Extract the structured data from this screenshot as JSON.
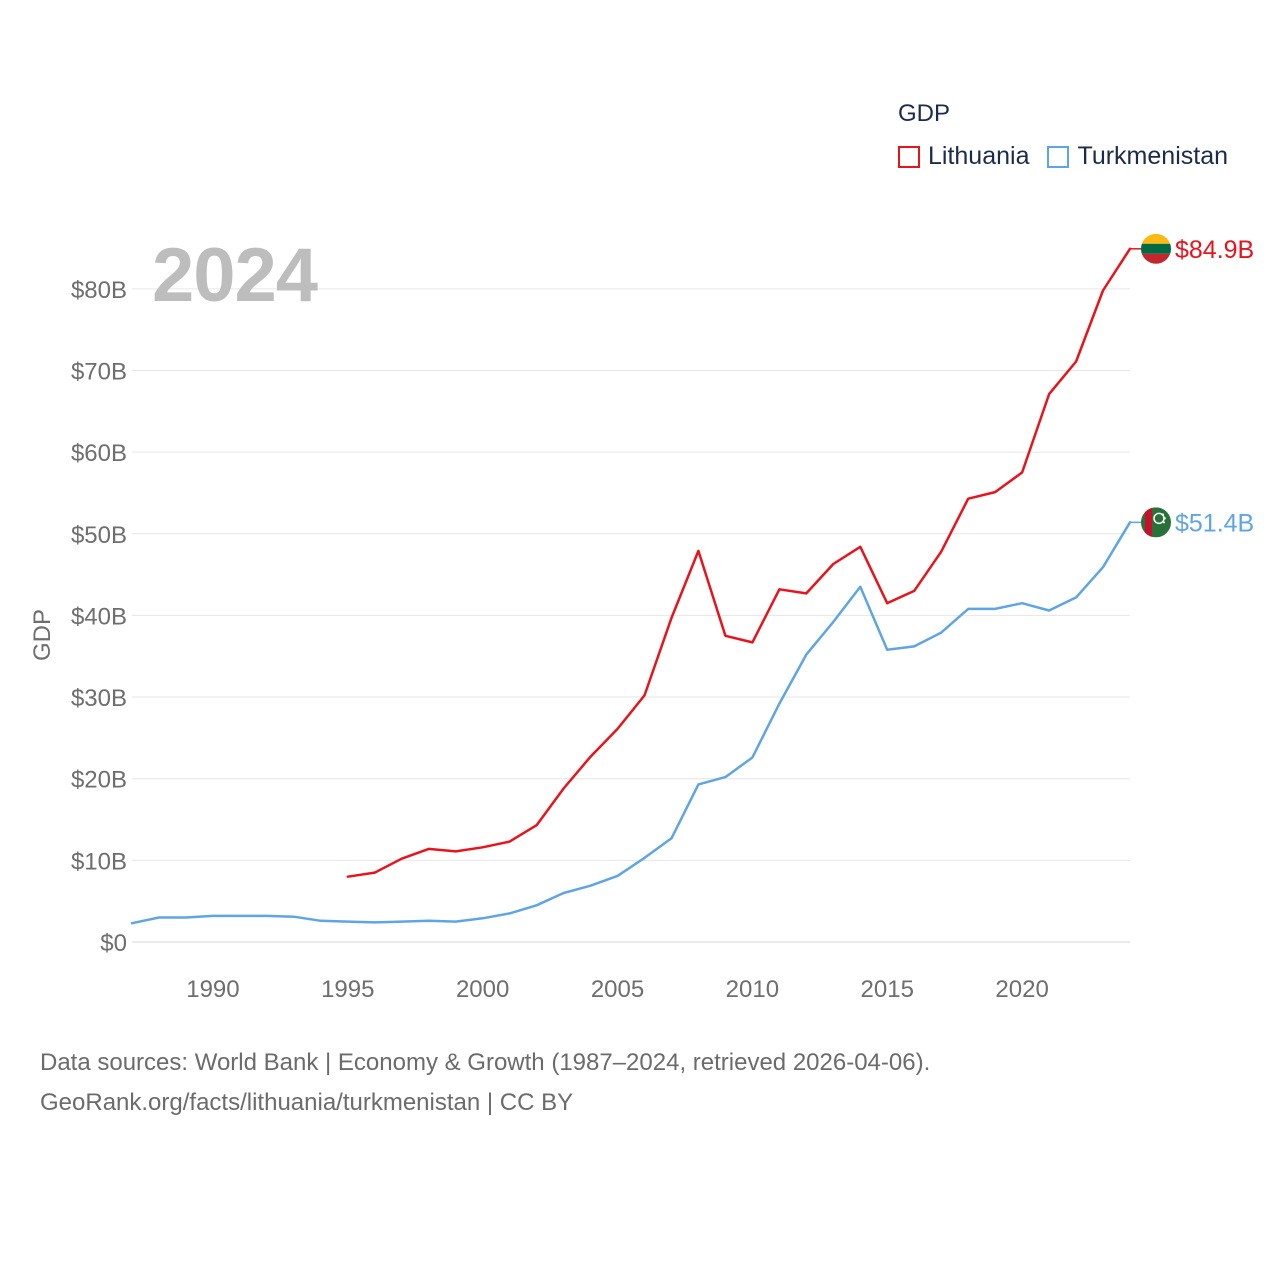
{
  "chart_data": {
    "type": "line",
    "legend_title": "GDP",
    "legend_placement": "top-right",
    "ylabel": "GDP",
    "xlabel": "",
    "year_label": "2024",
    "x_ticks": [
      1990,
      1995,
      2000,
      2005,
      2010,
      2015,
      2020
    ],
    "y_ticks": [
      0,
      10,
      20,
      30,
      40,
      50,
      60,
      70,
      80
    ],
    "y_tick_labels": [
      "$0",
      "$10B",
      "$20B",
      "$30B",
      "$40B",
      "$50B",
      "$60B",
      "$70B",
      "$80B"
    ],
    "xlim": [
      1987,
      2024
    ],
    "ylim": [
      0,
      85
    ],
    "units": "billion USD",
    "series": [
      {
        "name": "Lithuania",
        "color": "#e8141c",
        "flag": "lithuania-flag",
        "end_label": "$84.9B",
        "x": [
          1995,
          1996,
          1997,
          1998,
          1999,
          2000,
          2001,
          2002,
          2003,
          2004,
          2005,
          2006,
          2007,
          2008,
          2009,
          2010,
          2011,
          2012,
          2013,
          2014,
          2015,
          2016,
          2017,
          2018,
          2019,
          2020,
          2021,
          2022,
          2023,
          2024
        ],
        "values": [
          8.0,
          8.5,
          10.2,
          11.4,
          11.1,
          11.6,
          12.3,
          14.3,
          18.8,
          22.7,
          26.1,
          30.2,
          39.7,
          47.9,
          37.5,
          36.7,
          43.2,
          42.7,
          46.3,
          48.4,
          41.5,
          43.0,
          47.8,
          54.3,
          55.1,
          57.5,
          67.1,
          71.1,
          79.8,
          84.9
        ]
      },
      {
        "name": "Turkmenistan",
        "color": "#5fa5e6",
        "flag": "turkmenistan-flag",
        "end_label": "$51.4B",
        "x": [
          1987,
          1988,
          1989,
          1990,
          1991,
          1992,
          1993,
          1994,
          1995,
          1996,
          1997,
          1998,
          1999,
          2000,
          2001,
          2002,
          2003,
          2004,
          2005,
          2006,
          2007,
          2008,
          2009,
          2010,
          2011,
          2012,
          2013,
          2014,
          2015,
          2016,
          2017,
          2018,
          2019,
          2020,
          2021,
          2022,
          2023,
          2024
        ],
        "values": [
          2.3,
          3.0,
          3.0,
          3.2,
          3.2,
          3.2,
          3.1,
          2.6,
          2.5,
          2.4,
          2.5,
          2.6,
          2.5,
          2.9,
          3.5,
          4.5,
          6.0,
          6.9,
          8.1,
          10.3,
          12.7,
          19.3,
          20.2,
          22.6,
          29.2,
          35.2,
          39.2,
          43.5,
          35.8,
          36.2,
          37.9,
          40.8,
          40.8,
          41.5,
          40.6,
          42.2,
          45.9,
          51.4
        ]
      }
    ]
  },
  "footer": {
    "line1": "Data sources: World Bank | Economy & Growth (1987–2024, retrieved 2026-04-06).",
    "line2": "GeoRank.org/facts/lithuania/turkmenistan | CC BY"
  },
  "flags": {
    "lithuania": {
      "top": "#fdb913",
      "middle": "#006a44",
      "bottom": "#c1272d"
    },
    "turkmenistan": {
      "field": "#28723a",
      "band": "#c8102e",
      "emblem": "#ffffff"
    }
  }
}
